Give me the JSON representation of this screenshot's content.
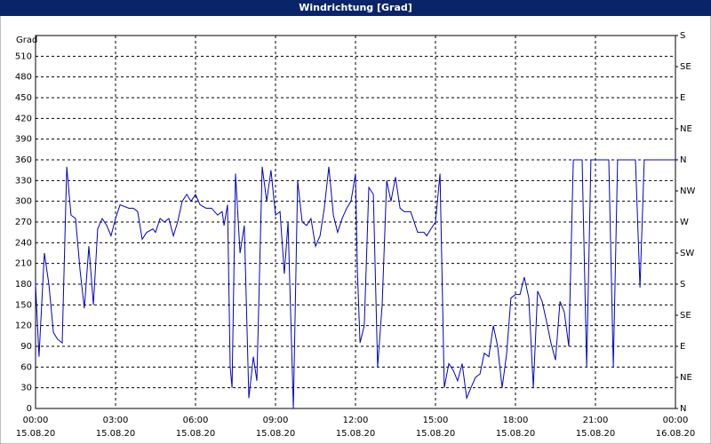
{
  "chart_data": {
    "type": "line",
    "title": "Windrichtung [Grad]",
    "y_label": "Grad",
    "x": [
      0,
      0.13,
      0.33,
      0.5,
      0.67,
      0.83,
      1,
      1.17,
      1.33,
      1.5,
      1.67,
      1.83,
      2,
      2.17,
      2.33,
      2.5,
      2.67,
      2.83,
      3,
      3.17,
      3.5,
      3.67,
      3.83,
      4,
      4.17,
      4.4,
      4.5,
      4.67,
      4.83,
      5,
      5.17,
      5.33,
      5.5,
      5.67,
      5.83,
      6,
      6.17,
      6.4,
      6.6,
      6.83,
      7,
      7.07,
      7.2,
      7.3,
      7.37,
      7.5,
      7.67,
      7.83,
      8,
      8.17,
      8.3,
      8.5,
      8.67,
      8.83,
      9,
      9.17,
      9.33,
      9.47,
      9.67,
      9.83,
      10,
      10.17,
      10.33,
      10.5,
      10.67,
      10.83,
      11,
      11.17,
      11.33,
      11.5,
      11.67,
      11.83,
      12,
      12.07,
      12.17,
      12.33,
      12.5,
      12.67,
      12.83,
      13,
      13.17,
      13.33,
      13.5,
      13.67,
      13.83,
      14.07,
      14.33,
      14.57,
      14.67,
      14.83,
      15,
      15.17,
      15.33,
      15.5,
      15.67,
      15.83,
      16,
      16.17,
      16.33,
      16.5,
      16.67,
      16.83,
      17,
      17.17,
      17.33,
      17.5,
      17.67,
      17.83,
      18,
      18.17,
      18.33,
      18.5,
      18.67,
      18.83,
      19,
      19.17,
      19.33,
      19.5,
      19.67,
      19.83,
      20,
      20.17,
      20.5,
      20.67,
      20.83,
      21.5,
      21.67,
      21.83,
      22.5,
      22.67,
      22.83,
      24
    ],
    "series": [
      {
        "name": "Windrichtung",
        "color": "#0000cc",
        "values": [
          180,
          75,
          225,
          180,
          110,
          100,
          95,
          350,
          280,
          275,
          200,
          145,
          235,
          150,
          260,
          275,
          265,
          250,
          275,
          295,
          290,
          290,
          285,
          245,
          255,
          260,
          255,
          275,
          270,
          275,
          250,
          270,
          300,
          310,
          300,
          310,
          295,
          290,
          290,
          280,
          285,
          265,
          295,
          60,
          30,
          340,
          225,
          265,
          15,
          75,
          40,
          350,
          300,
          345,
          280,
          285,
          195,
          270,
          0,
          330,
          270,
          265,
          275,
          235,
          250,
          290,
          350,
          280,
          255,
          275,
          290,
          300,
          340,
          200,
          95,
          120,
          320,
          310,
          60,
          150,
          330,
          300,
          335,
          290,
          285,
          285,
          255,
          255,
          250,
          260,
          270,
          340,
          30,
          65,
          55,
          40,
          65,
          15,
          30,
          45,
          50,
          80,
          75,
          120,
          90,
          30,
          80,
          160,
          165,
          165,
          190,
          160,
          30,
          170,
          155,
          125,
          95,
          70,
          155,
          140,
          90,
          360,
          360,
          60,
          360,
          360,
          60,
          360,
          360,
          175,
          360,
          360
        ]
      }
    ],
    "xlim": [
      0,
      24
    ],
    "xticks": [
      {
        "value": 0,
        "label": "00:00"
      },
      {
        "value": 3,
        "label": "03:00"
      },
      {
        "value": 6,
        "label": "06:00"
      },
      {
        "value": 9,
        "label": "09:00"
      },
      {
        "value": 12,
        "label": "12:00"
      },
      {
        "value": 15,
        "label": "15:00"
      },
      {
        "value": 18,
        "label": "18:00"
      },
      {
        "value": 21,
        "label": "21:00"
      },
      {
        "value": 24,
        "label": "00:00"
      }
    ],
    "xtick_dates": [
      "15.08.20",
      "15.08.20",
      "15.08.20",
      "15.08.20",
      "15.08.20",
      "15.08.20",
      "15.08.20",
      "15.08.20",
      "16.08.20"
    ],
    "ylim": [
      0,
      540
    ],
    "yticks": [
      0,
      30,
      60,
      90,
      120,
      150,
      180,
      210,
      240,
      270,
      300,
      330,
      360,
      390,
      420,
      450,
      480,
      510
    ],
    "y2lim": [
      0,
      540
    ],
    "y2ticks": [
      {
        "value": 0,
        "label": "N"
      },
      {
        "value": 45,
        "label": "NE"
      },
      {
        "value": 90,
        "label": "E"
      },
      {
        "value": 135,
        "label": "SE"
      },
      {
        "value": 180,
        "label": "S"
      },
      {
        "value": 225,
        "label": "SW"
      },
      {
        "value": 270,
        "label": "W"
      },
      {
        "value": 315,
        "label": "NW"
      },
      {
        "value": 360,
        "label": "N"
      },
      {
        "value": 405,
        "label": "NE"
      },
      {
        "value": 450,
        "label": "E"
      },
      {
        "value": 495,
        "label": "SE"
      },
      {
        "value": 540,
        "label": "S"
      }
    ],
    "grid": true
  }
}
